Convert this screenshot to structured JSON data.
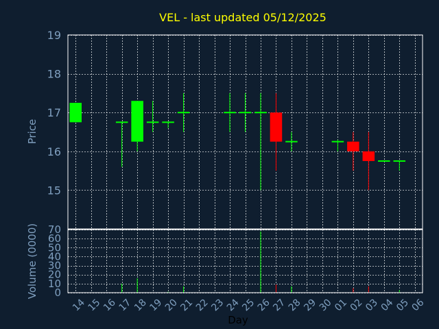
{
  "chart_data": {
    "type": "candlestick",
    "title": "VEL - last updated 05/12/2025",
    "xlabel": "Day",
    "price_panel": {
      "ylabel": "Price",
      "ylim": [
        14,
        19
      ],
      "yticks": [
        15,
        16,
        17,
        18,
        19
      ]
    },
    "volume_panel": {
      "ylabel": "Volume (0000)",
      "ylim": [
        0,
        70
      ],
      "yticks": [
        0,
        10,
        20,
        30,
        40,
        50,
        60,
        70
      ]
    },
    "categories": [
      "14",
      "15",
      "16",
      "17",
      "18",
      "19",
      "20",
      "21",
      "22",
      "23",
      "24",
      "25",
      "26",
      "27",
      "28",
      "29",
      "30",
      "01",
      "02",
      "03",
      "04",
      "05",
      "06"
    ],
    "candles": [
      {
        "day": "14",
        "open": 16.75,
        "high": 17.25,
        "low": 16.75,
        "close": 17.25,
        "volume": 0
      },
      {
        "day": "17",
        "open": 16.75,
        "high": 16.75,
        "low": 15.6,
        "close": 16.75,
        "volume": 10
      },
      {
        "day": "18",
        "open": 16.25,
        "high": 17.3,
        "low": 16.0,
        "close": 17.3,
        "volume": 16
      },
      {
        "day": "19",
        "open": 16.75,
        "high": 17.3,
        "low": 16.5,
        "close": 16.75,
        "volume": 0
      },
      {
        "day": "20",
        "open": 16.75,
        "high": 16.75,
        "low": 16.6,
        "close": 16.75,
        "volume": 1
      },
      {
        "day": "21",
        "open": 17.0,
        "high": 17.5,
        "low": 16.5,
        "close": 17.0,
        "volume": 7
      },
      {
        "day": "24",
        "open": 17.0,
        "high": 17.5,
        "low": 16.5,
        "close": 17.0,
        "volume": 0
      },
      {
        "day": "25",
        "open": 17.0,
        "high": 17.5,
        "low": 16.5,
        "close": 17.0,
        "volume": 0
      },
      {
        "day": "26",
        "open": 17.0,
        "high": 17.5,
        "low": 15.0,
        "close": 17.0,
        "volume": 68
      },
      {
        "day": "27",
        "open": 17.0,
        "high": 17.5,
        "low": 15.5,
        "close": 16.25,
        "volume": 9
      },
      {
        "day": "28",
        "open": 16.25,
        "high": 16.5,
        "low": 16.0,
        "close": 16.25,
        "volume": 7
      },
      {
        "day": "01",
        "open": 16.25,
        "high": 16.3,
        "low": 16.0,
        "close": 16.25,
        "volume": 0
      },
      {
        "day": "02",
        "open": 16.25,
        "high": 16.5,
        "low": 15.5,
        "close": 16.0,
        "volume": 5
      },
      {
        "day": "03",
        "open": 16.0,
        "high": 16.5,
        "low": 15.0,
        "close": 15.75,
        "volume": 7
      },
      {
        "day": "04",
        "open": 15.75,
        "high": 15.75,
        "low": 15.75,
        "close": 15.75,
        "volume": 0
      },
      {
        "day": "05",
        "open": 15.75,
        "high": 15.75,
        "low": 15.5,
        "close": 15.75,
        "volume": 3
      }
    ],
    "colors": {
      "up": "#00ff00",
      "down": "#ff0000",
      "background": "#0f1e2f",
      "grid": "#ffffff",
      "tick_text": "#7f9fbf",
      "title": "#ffff00"
    },
    "grid": true
  }
}
